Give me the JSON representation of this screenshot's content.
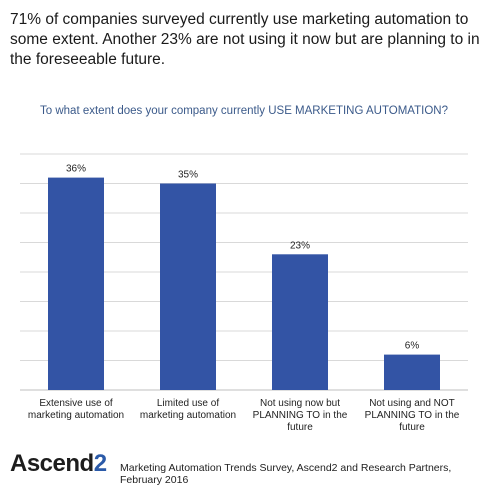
{
  "intro_text": "71% of companies surveyed currently use marketing automation to some extent. Another 23% are not using it now but are planning to in the foreseeable future.",
  "logo": {
    "text": "Ascend",
    "suffix": "2"
  },
  "source_text": "Marketing Automation Trends Survey, Ascend2 and Research Partners, February 2016",
  "colors": {
    "bar": "#3354a5",
    "grid": "#d9d9d9",
    "title": "#3b5a8a"
  },
  "chart_data": {
    "type": "bar",
    "title": "To what extent does your company currently USE MARKETING AUTOMATION?",
    "categories": [
      "Extensive use of marketing automation",
      "Limited use of marketing automation",
      "Not using now but PLANNING TO in the future",
      "Not using and NOT PLANNING TO in the future"
    ],
    "values": [
      36,
      35,
      23,
      6
    ],
    "data_labels": [
      "36%",
      "35%",
      "23%",
      "6%"
    ],
    "ylim": [
      0,
      40
    ],
    "grid": true,
    "xlabel": "",
    "ylabel": ""
  }
}
